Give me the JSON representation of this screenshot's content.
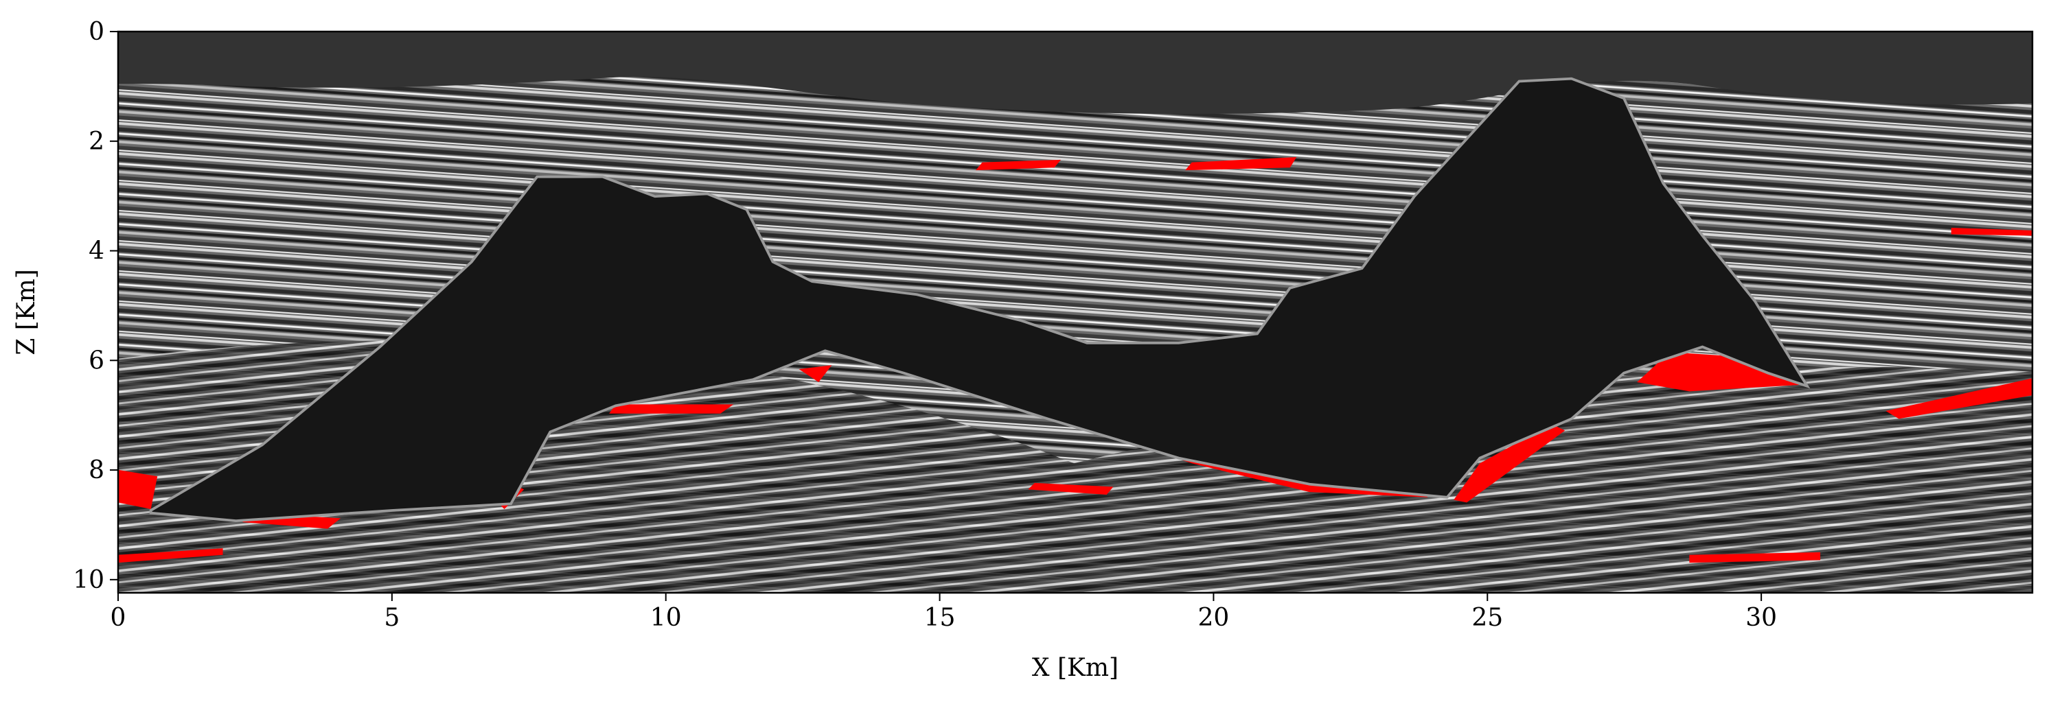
{
  "chart_data": {
    "type": "image",
    "x_label": "X [Km]",
    "y_label": "Z [Km]",
    "xlim": [
      0,
      34.95
    ],
    "xticks": [
      0,
      5,
      10,
      15,
      20,
      25,
      30
    ],
    "ylim": [
      0,
      10.24
    ],
    "yticks": [
      0,
      2,
      4,
      6,
      8,
      10
    ],
    "invert_y": true
  }
}
